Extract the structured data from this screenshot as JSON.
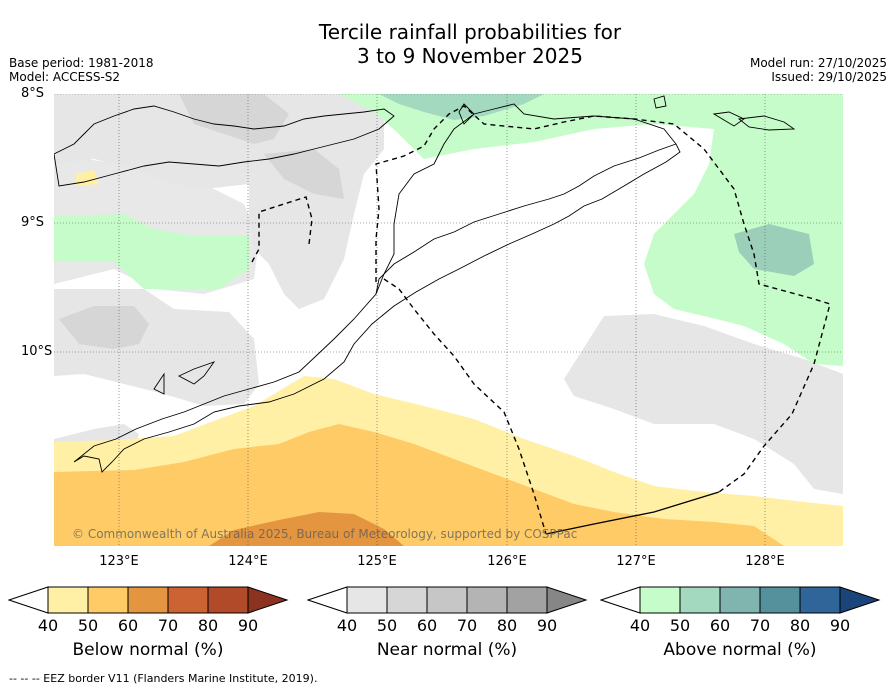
{
  "title_line1": "Tercile rainfall probabilities for",
  "title_line2": "3 to 9 November 2025",
  "meta": {
    "base_period": "Base period: 1981-2018",
    "model": "Model: ACCESS-S2",
    "model_run": "Model run: 27/10/2025",
    "issued": "Issued: 29/10/2025"
  },
  "map": {
    "lat_labels": [
      "8°S",
      "9°S",
      "10°S"
    ],
    "lon_labels": [
      "123°E",
      "124°E",
      "125°E",
      "126°E",
      "127°E",
      "128°E"
    ],
    "copyright": "© Commonwealth of Australia 2025, Bureau of Meteorology, supported by COSPPac"
  },
  "colorbars": [
    {
      "name": "below",
      "title": "Below normal (%)",
      "ticks": [
        "40",
        "50",
        "60",
        "70",
        "80",
        "90"
      ],
      "colors": [
        "#fff0a6",
        "#fecb66",
        "#e39540",
        "#cb6332",
        "#b04a29",
        "#8c3220"
      ]
    },
    {
      "name": "near",
      "title": "Near normal (%)",
      "ticks": [
        "40",
        "50",
        "60",
        "70",
        "80",
        "90"
      ],
      "colors": [
        "#e6e6e6",
        "#d6d6d6",
        "#c6c6c6",
        "#b4b4b4",
        "#a2a2a2",
        "#868686"
      ]
    },
    {
      "name": "above",
      "title": "Above normal (%)",
      "ticks": [
        "40",
        "50",
        "60",
        "70",
        "80",
        "90"
      ],
      "colors": [
        "#c6fcc9",
        "#a3d9be",
        "#7fb5ae",
        "#55919d",
        "#2f6599",
        "#1a447a"
      ]
    }
  ],
  "footer": "--  --  -- EEZ border V11 (Flanders Marine Institute, 2019)."
}
